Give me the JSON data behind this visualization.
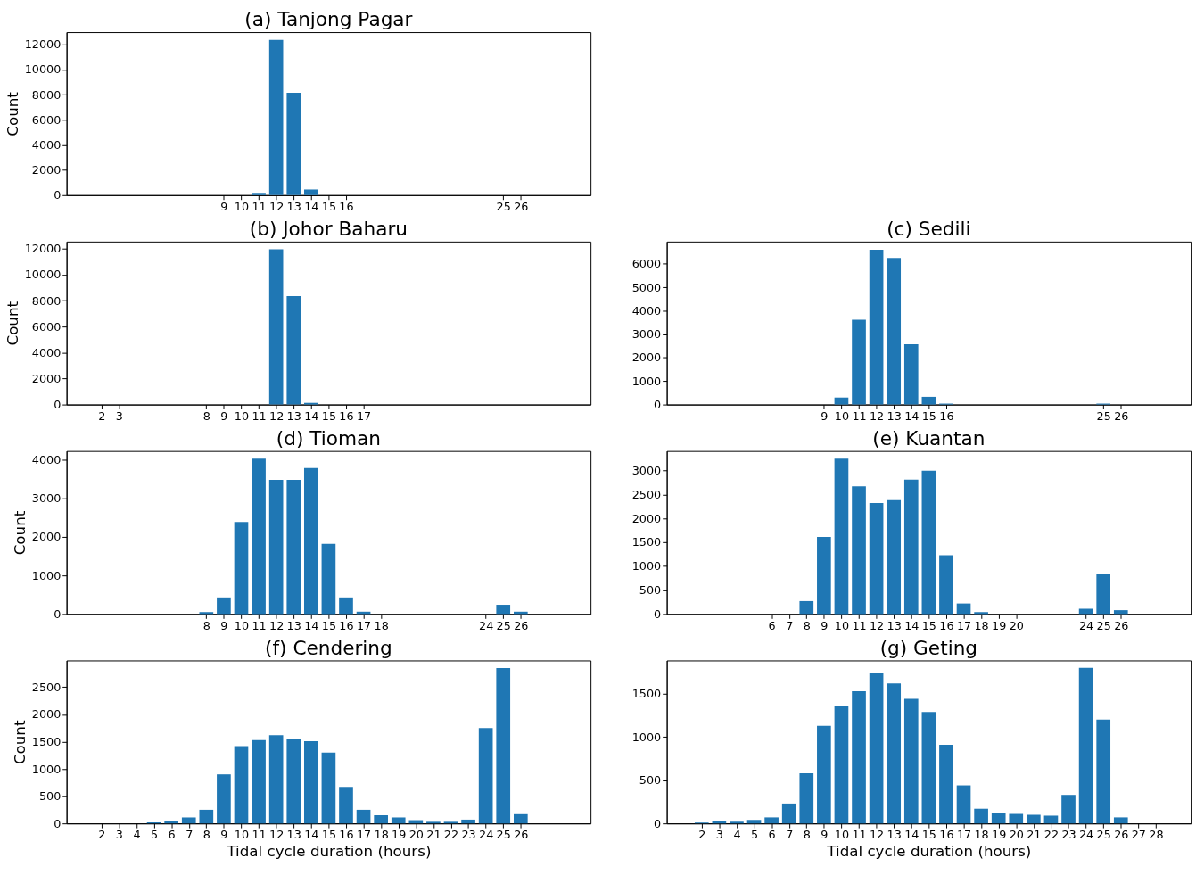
{
  "chart_data": [
    {
      "type": "bar",
      "title": "(a) Tanjong Pagar",
      "ylabel": "Count",
      "color": "#1f77b4",
      "x": [
        9,
        10,
        11,
        12,
        13,
        14,
        15,
        16,
        25,
        26
      ],
      "values": [
        0,
        0,
        180,
        12350,
        8150,
        450,
        0,
        0,
        0,
        0
      ],
      "xlim": [
        0,
        30
      ],
      "xticks": [
        9,
        10,
        11,
        12,
        13,
        14,
        15,
        16,
        25,
        26
      ],
      "ylim": [
        0,
        12970
      ],
      "yticks": [
        0,
        2000,
        4000,
        6000,
        8000,
        10000,
        12000
      ]
    },
    {
      "type": "bar",
      "title": "(b) Johor Baharu",
      "ylabel": "Count",
      "color": "#1f77b4",
      "x": [
        2,
        3,
        8,
        9,
        10,
        11,
        12,
        13,
        14,
        15,
        16,
        17
      ],
      "values": [
        0,
        0,
        0,
        0,
        0,
        0,
        11950,
        8350,
        130,
        0,
        0,
        0
      ],
      "xlim": [
        0,
        30
      ],
      "xticks": [
        2,
        3,
        8,
        9,
        10,
        11,
        12,
        13,
        14,
        15,
        16,
        17
      ],
      "ylim": [
        0,
        12550
      ],
      "yticks": [
        0,
        2000,
        4000,
        6000,
        8000,
        10000,
        12000
      ]
    },
    {
      "type": "bar",
      "title": "(c) Sedili",
      "color": "#1f77b4",
      "x": [
        9,
        10,
        11,
        12,
        13,
        14,
        15,
        16,
        25,
        26
      ],
      "values": [
        0,
        300,
        3620,
        6600,
        6250,
        2570,
        330,
        40,
        40,
        0
      ],
      "xlim": [
        0,
        30
      ],
      "xticks": [
        9,
        10,
        11,
        12,
        13,
        14,
        15,
        16,
        25,
        26
      ],
      "ylim": [
        0,
        6950
      ],
      "yticks": [
        0,
        1000,
        2000,
        3000,
        4000,
        5000,
        6000
      ]
    },
    {
      "type": "bar",
      "title": "(d) Tioman",
      "ylabel": "Count",
      "color": "#1f77b4",
      "x": [
        8,
        9,
        10,
        11,
        12,
        13,
        14,
        15,
        16,
        17,
        18,
        24,
        25,
        26
      ],
      "values": [
        50,
        430,
        2390,
        4030,
        3480,
        3480,
        3790,
        1820,
        430,
        60,
        0,
        0,
        240,
        60
      ],
      "xlim": [
        0,
        30
      ],
      "xticks": [
        8,
        9,
        10,
        11,
        12,
        13,
        14,
        15,
        16,
        17,
        18,
        24,
        25,
        26
      ],
      "ylim": [
        0,
        4230
      ],
      "yticks": [
        0,
        1000,
        2000,
        3000,
        4000
      ]
    },
    {
      "type": "bar",
      "title": "(e) Kuantan",
      "color": "#1f77b4",
      "x": [
        6,
        7,
        8,
        9,
        10,
        11,
        12,
        13,
        14,
        15,
        16,
        17,
        18,
        19,
        20,
        24,
        25,
        26
      ],
      "values": [
        0,
        0,
        270,
        1610,
        3250,
        2670,
        2320,
        2380,
        2810,
        3000,
        1230,
        220,
        40,
        0,
        0,
        110,
        840,
        80
      ],
      "xlim": [
        0,
        30
      ],
      "xticks": [
        6,
        7,
        8,
        9,
        10,
        11,
        12,
        13,
        14,
        15,
        16,
        17,
        18,
        19,
        20,
        24,
        25,
        26
      ],
      "ylim": [
        0,
        3410
      ],
      "yticks": [
        0,
        500,
        1000,
        1500,
        2000,
        2500,
        3000
      ]
    },
    {
      "type": "bar",
      "title": "(f) Cendering",
      "ylabel": "Count",
      "xlabel": "Tidal cycle duration (hours)",
      "color": "#1f77b4",
      "x": [
        2,
        3,
        4,
        5,
        6,
        7,
        8,
        9,
        10,
        11,
        12,
        13,
        14,
        15,
        16,
        17,
        18,
        19,
        20,
        21,
        22,
        23,
        24,
        25,
        26
      ],
      "values": [
        0,
        0,
        0,
        20,
        40,
        110,
        250,
        900,
        1420,
        1530,
        1620,
        1540,
        1510,
        1300,
        670,
        250,
        150,
        110,
        60,
        30,
        30,
        70,
        1750,
        2850,
        170
      ],
      "xlim": [
        0,
        30
      ],
      "xticks": [
        2,
        3,
        4,
        5,
        6,
        7,
        8,
        9,
        10,
        11,
        12,
        13,
        14,
        15,
        16,
        17,
        18,
        19,
        20,
        21,
        22,
        23,
        24,
        25,
        26
      ],
      "ylim": [
        0,
        2990
      ],
      "yticks": [
        0,
        500,
        1000,
        1500,
        2000,
        2500
      ]
    },
    {
      "type": "bar",
      "title": "(g) Geting",
      "xlabel": "Tidal cycle duration (hours)",
      "color": "#1f77b4",
      "x": [
        2,
        3,
        4,
        5,
        6,
        7,
        8,
        9,
        10,
        11,
        12,
        13,
        14,
        15,
        16,
        17,
        18,
        19,
        20,
        21,
        22,
        23,
        24,
        25,
        26,
        27,
        28
      ],
      "values": [
        10,
        30,
        20,
        40,
        70,
        230,
        580,
        1130,
        1360,
        1530,
        1740,
        1620,
        1440,
        1290,
        910,
        440,
        170,
        120,
        110,
        100,
        90,
        330,
        1800,
        1200,
        70,
        0,
        0
      ],
      "xlim": [
        0,
        30
      ],
      "xticks": [
        2,
        3,
        4,
        5,
        6,
        7,
        8,
        9,
        10,
        11,
        12,
        13,
        14,
        15,
        16,
        17,
        18,
        19,
        20,
        21,
        22,
        23,
        24,
        25,
        26,
        27,
        28
      ],
      "ylim": [
        0,
        1885
      ],
      "yticks": [
        0,
        500,
        1000,
        1500
      ]
    }
  ]
}
